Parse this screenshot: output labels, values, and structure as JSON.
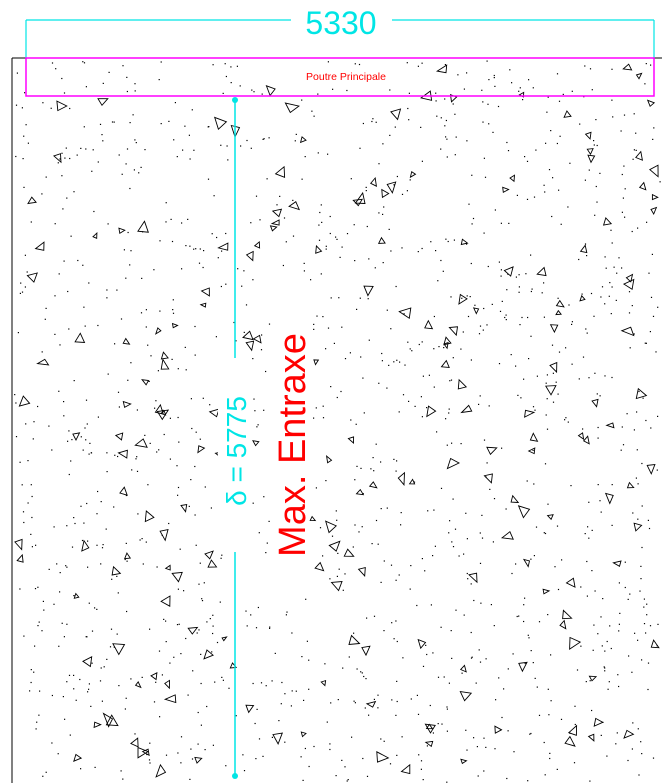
{
  "drawing": {
    "width_dimension": {
      "value": "5330",
      "color": "#00e5e5"
    },
    "beam": {
      "label": "Poutre Principale",
      "color": "#ff00ff",
      "label_color": "#ff0000"
    },
    "span_dimension": {
      "value": "δ = 5775",
      "color": "#00e5e5"
    },
    "max_label": {
      "text": "Max. Entraxe",
      "color": "#ff0000"
    },
    "hatch": {
      "pattern": "concrete",
      "color": "#000000"
    }
  }
}
